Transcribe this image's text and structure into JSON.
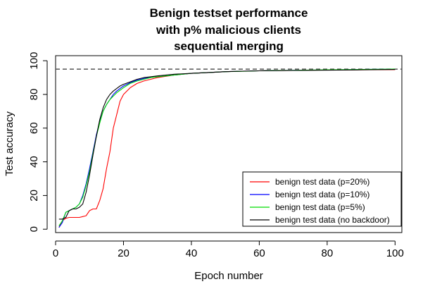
{
  "chart_data": {
    "type": "line",
    "title_lines": [
      "Benign testset performance",
      "with p% malicious clients",
      "sequential merging"
    ],
    "xlabel": "Epoch number",
    "ylabel": "Test accuracy",
    "xlim": [
      0,
      102
    ],
    "ylim": [
      -2,
      103
    ],
    "xticks": [
      0,
      20,
      40,
      60,
      80,
      100
    ],
    "yticks": [
      0,
      20,
      40,
      60,
      80,
      100
    ],
    "reference_line": {
      "y": 95,
      "style": "dashed",
      "color": "#555555"
    },
    "legend_position": "bottom-right",
    "series": [
      {
        "name": "benign test data (p=20%)",
        "color": "#ff0000",
        "x": [
          1,
          2,
          3,
          4,
          5,
          6,
          7,
          8,
          9,
          10,
          11,
          12,
          13,
          14,
          15,
          16,
          17,
          18,
          19,
          20,
          22,
          24,
          26,
          28,
          30,
          35,
          40,
          45,
          50,
          55,
          60,
          70,
          80,
          90,
          100
        ],
        "y": [
          1,
          5,
          6.5,
          7,
          7,
          7,
          7,
          7.5,
          8,
          11,
          12,
          12,
          17,
          24,
          36,
          46,
          60,
          68,
          76,
          80,
          84,
          86.5,
          88,
          89,
          90,
          91.5,
          92.5,
          93,
          93.5,
          93.8,
          94,
          94.2,
          94.5,
          94.6,
          94.7
        ]
      },
      {
        "name": "benign test data (p=10%)",
        "color": "#0000ff",
        "x": [
          1,
          2,
          3,
          4,
          5,
          6,
          7,
          8,
          9,
          10,
          11,
          12,
          13,
          14,
          15,
          16,
          17,
          18,
          19,
          20,
          22,
          24,
          26,
          28,
          30,
          35,
          40,
          45,
          50,
          55,
          60,
          70,
          80,
          90,
          100
        ],
        "y": [
          1,
          4,
          10,
          11,
          12,
          13,
          15,
          20,
          27,
          36,
          46,
          56,
          64,
          70,
          74,
          77,
          80,
          82,
          83.5,
          85,
          87,
          88.5,
          89.5,
          90,
          90.5,
          91.5,
          92.5,
          93,
          93.5,
          93.8,
          94,
          94.3,
          94.5,
          94.8,
          95
        ]
      },
      {
        "name": "benign test data (p=5%)",
        "color": "#00dd00",
        "x": [
          1,
          2,
          3,
          4,
          5,
          6,
          7,
          8,
          9,
          10,
          11,
          12,
          13,
          14,
          15,
          16,
          17,
          18,
          19,
          20,
          22,
          24,
          26,
          28,
          30,
          35,
          40,
          45,
          50,
          55,
          60,
          70,
          80,
          90,
          100
        ],
        "y": [
          2,
          5,
          10,
          11,
          12,
          13,
          15,
          19,
          26,
          34,
          45,
          55,
          63,
          70,
          74,
          77,
          79,
          81,
          82.5,
          84,
          86.5,
          88,
          89,
          90,
          90.5,
          91.5,
          92.5,
          93,
          93.5,
          93.7,
          94,
          94.3,
          94.6,
          94.8,
          95
        ]
      },
      {
        "name": "benign test data (no backdoor)",
        "color": "#000000",
        "x": [
          1,
          2,
          3,
          4,
          5,
          6,
          7,
          8,
          9,
          10,
          11,
          12,
          13,
          14,
          15,
          16,
          17,
          18,
          19,
          20,
          22,
          24,
          26,
          28,
          30,
          35,
          40,
          45,
          50,
          55,
          60,
          70,
          80,
          90,
          100
        ],
        "y": [
          6,
          6,
          7,
          11,
          12,
          12,
          13,
          15,
          22,
          32,
          44,
          55,
          65,
          72,
          77,
          80,
          82,
          83.5,
          85,
          86,
          87.5,
          89,
          90,
          90.5,
          91,
          92,
          92.5,
          93,
          93.5,
          93.8,
          94,
          94.2,
          94.4,
          94.6,
          94.8
        ]
      }
    ]
  }
}
